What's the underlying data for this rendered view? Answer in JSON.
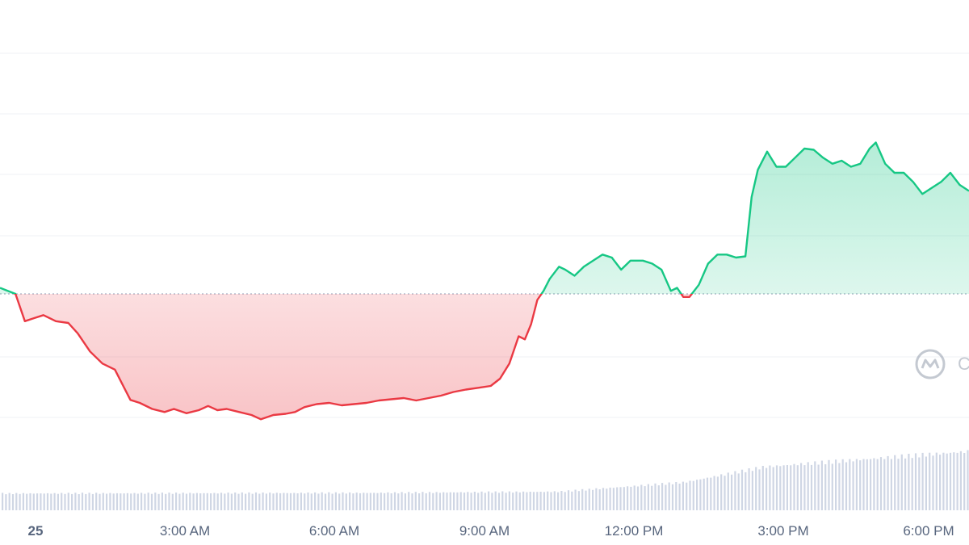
{
  "chart_data": {
    "type": "line",
    "x_ticks": [
      "25",
      "3:00 AM",
      "6:00 AM",
      "9:00 AM",
      "12:00 PM",
      "3:00 PM",
      "6:00 PM"
    ],
    "baseline": 0.0,
    "price": [
      [
        0.0,
        0.1
      ],
      [
        0.25,
        0.0
      ],
      [
        0.4,
        -0.45
      ],
      [
        0.55,
        -0.4
      ],
      [
        0.7,
        -0.35
      ],
      [
        0.9,
        -0.45
      ],
      [
        1.1,
        -0.48
      ],
      [
        1.25,
        -0.65
      ],
      [
        1.45,
        -0.95
      ],
      [
        1.65,
        -1.15
      ],
      [
        1.85,
        -1.25
      ],
      [
        2.0,
        -1.55
      ],
      [
        2.1,
        -1.75
      ],
      [
        2.25,
        -1.8
      ],
      [
        2.45,
        -1.9
      ],
      [
        2.65,
        -1.95
      ],
      [
        2.8,
        -1.9
      ],
      [
        3.0,
        -1.97
      ],
      [
        3.2,
        -1.92
      ],
      [
        3.35,
        -1.85
      ],
      [
        3.5,
        -1.92
      ],
      [
        3.65,
        -1.9
      ],
      [
        3.85,
        -1.95
      ],
      [
        4.05,
        -2.0
      ],
      [
        4.2,
        -2.07
      ],
      [
        4.4,
        -2.0
      ],
      [
        4.6,
        -1.98
      ],
      [
        4.75,
        -1.95
      ],
      [
        4.9,
        -1.87
      ],
      [
        5.1,
        -1.82
      ],
      [
        5.3,
        -1.8
      ],
      [
        5.5,
        -1.84
      ],
      [
        5.7,
        -1.82
      ],
      [
        5.9,
        -1.8
      ],
      [
        6.1,
        -1.76
      ],
      [
        6.3,
        -1.74
      ],
      [
        6.5,
        -1.72
      ],
      [
        6.7,
        -1.76
      ],
      [
        6.9,
        -1.72
      ],
      [
        7.1,
        -1.68
      ],
      [
        7.3,
        -1.62
      ],
      [
        7.5,
        -1.58
      ],
      [
        7.7,
        -1.55
      ],
      [
        7.9,
        -1.52
      ],
      [
        8.05,
        -1.4
      ],
      [
        8.2,
        -1.15
      ],
      [
        8.35,
        -0.7
      ],
      [
        8.45,
        -0.75
      ],
      [
        8.55,
        -0.5
      ],
      [
        8.65,
        -0.1
      ],
      [
        8.75,
        0.05
      ],
      [
        8.85,
        0.25
      ],
      [
        9.0,
        0.45
      ],
      [
        9.1,
        0.4
      ],
      [
        9.25,
        0.3
      ],
      [
        9.4,
        0.45
      ],
      [
        9.55,
        0.55
      ],
      [
        9.7,
        0.65
      ],
      [
        9.85,
        0.6
      ],
      [
        10.0,
        0.4
      ],
      [
        10.15,
        0.55
      ],
      [
        10.35,
        0.55
      ],
      [
        10.5,
        0.5
      ],
      [
        10.65,
        0.4
      ],
      [
        10.8,
        0.05
      ],
      [
        10.9,
        0.1
      ],
      [
        11.0,
        -0.05
      ],
      [
        11.1,
        -0.05
      ],
      [
        11.25,
        0.15
      ],
      [
        11.4,
        0.5
      ],
      [
        11.55,
        0.65
      ],
      [
        11.7,
        0.65
      ],
      [
        11.85,
        0.6
      ],
      [
        12.0,
        0.62
      ],
      [
        12.1,
        1.6
      ],
      [
        12.2,
        2.05
      ],
      [
        12.35,
        2.35
      ],
      [
        12.5,
        2.1
      ],
      [
        12.65,
        2.1
      ],
      [
        12.8,
        2.25
      ],
      [
        12.95,
        2.4
      ],
      [
        13.1,
        2.38
      ],
      [
        13.25,
        2.25
      ],
      [
        13.4,
        2.15
      ],
      [
        13.55,
        2.2
      ],
      [
        13.7,
        2.1
      ],
      [
        13.85,
        2.15
      ],
      [
        14.0,
        2.4
      ],
      [
        14.1,
        2.5
      ],
      [
        14.25,
        2.15
      ],
      [
        14.4,
        2.0
      ],
      [
        14.55,
        2.0
      ],
      [
        14.7,
        1.85
      ],
      [
        14.85,
        1.65
      ],
      [
        15.0,
        1.75
      ],
      [
        15.15,
        1.85
      ],
      [
        15.3,
        2.0
      ],
      [
        15.45,
        1.8
      ],
      [
        15.6,
        1.7
      ]
    ],
    "volume_profile": [
      [
        0,
        0.27
      ],
      [
        6,
        0.28
      ],
      [
        9,
        0.3
      ],
      [
        11,
        0.45
      ],
      [
        12.3,
        0.7
      ],
      [
        15.6,
        0.95
      ]
    ],
    "colors": {
      "up": "#16c784",
      "down": "#ea3943",
      "grid": "#eff2f5",
      "volume": "#cfd6e4"
    },
    "watermark_icon": "coinmarketcap-logo-icon"
  },
  "watermark": {
    "letter": "C"
  }
}
